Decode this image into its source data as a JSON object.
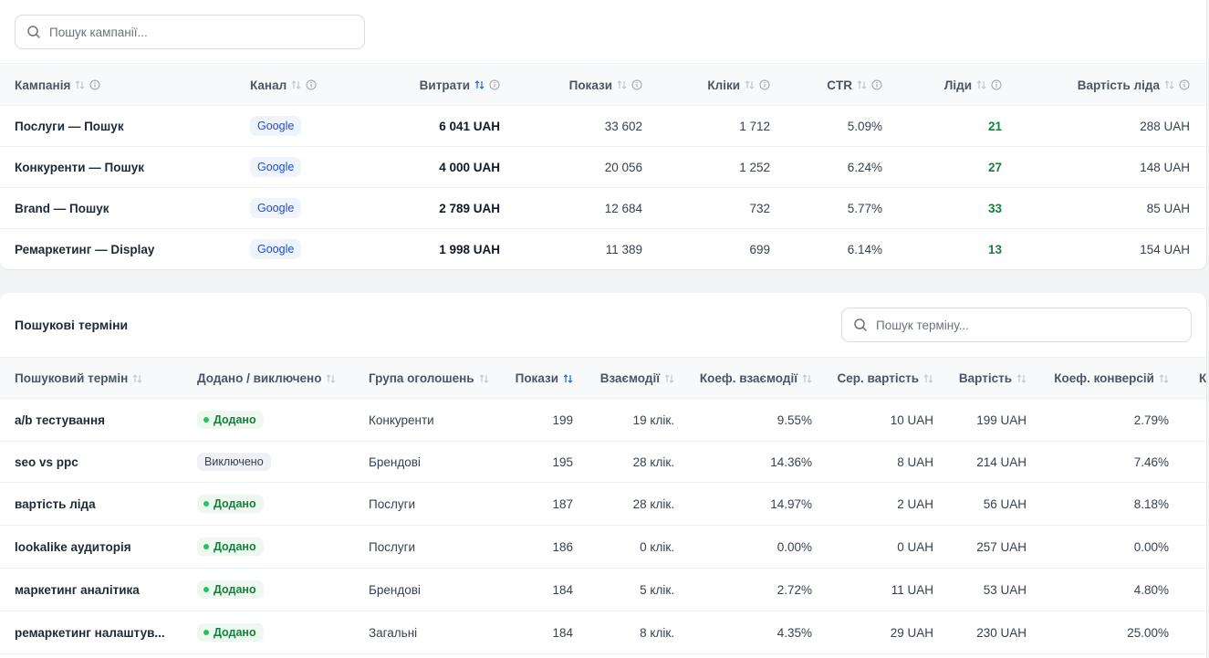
{
  "campaign_search": {
    "placeholder": "Пошук кампанії..."
  },
  "campaign_table": {
    "headers": [
      "Кампанія",
      "Канал",
      "Витрати",
      "Покази",
      "Кліки",
      "CTR",
      "Ліди",
      "Вартість ліда"
    ],
    "rows": [
      {
        "campaign": "Послуги — Пошук",
        "channel": "Google",
        "spend": "6 041 UAH",
        "impressions": "33 602",
        "clicks": "1 712",
        "ctr": "5.09%",
        "leads": "21",
        "cpl": "288 UAH"
      },
      {
        "campaign": "Конкуренти — Пошук",
        "channel": "Google",
        "spend": "4 000 UAH",
        "impressions": "20 056",
        "clicks": "1 252",
        "ctr": "6.24%",
        "leads": "27",
        "cpl": "148 UAH"
      },
      {
        "campaign": "Brand — Пошук",
        "channel": "Google",
        "spend": "2 789 UAH",
        "impressions": "12 684",
        "clicks": "732",
        "ctr": "5.77%",
        "leads": "33",
        "cpl": "85 UAH"
      },
      {
        "campaign": "Ремаркетинг — Display",
        "channel": "Google",
        "spend": "1 998 UAH",
        "impressions": "11 389",
        "clicks": "699",
        "ctr": "6.14%",
        "leads": "13",
        "cpl": "154 UAH"
      }
    ]
  },
  "terms_section": {
    "title": "Пошукові терміни",
    "search_placeholder": "Пошук терміну...",
    "headers": [
      "Пошуковий термін",
      "Додано / виключено",
      "Група оголошень",
      "Покази",
      "Взаємодії",
      "Коеф. взаємодії",
      "Сер. вартість",
      "Вартість",
      "Коеф. конверсій",
      "К"
    ],
    "rows": [
      {
        "term": "a/b тестування",
        "status": "Додано",
        "status_type": "added",
        "group": "Конкуренти",
        "impressions": "199",
        "interactions": "19 клік.",
        "rate": "9.55%",
        "avg_cost": "10 UAH",
        "cost": "199 UAH",
        "conv_rate": "2.79%"
      },
      {
        "term": "seo vs ppc",
        "status": "Виключено",
        "status_type": "excluded",
        "group": "Брендові",
        "impressions": "195",
        "interactions": "28 клік.",
        "rate": "14.36%",
        "avg_cost": "8 UAH",
        "cost": "214 UAH",
        "conv_rate": "7.46%"
      },
      {
        "term": "вартість ліда",
        "status": "Додано",
        "status_type": "added",
        "group": "Послуги",
        "impressions": "187",
        "interactions": "28 клік.",
        "rate": "14.97%",
        "avg_cost": "2 UAH",
        "cost": "56 UAH",
        "conv_rate": "8.18%"
      },
      {
        "term": "lookalike аудиторія",
        "status": "Додано",
        "status_type": "added",
        "group": "Послуги",
        "impressions": "186",
        "interactions": "0 клік.",
        "rate": "0.00%",
        "avg_cost": "0 UAH",
        "cost": "257 UAH",
        "conv_rate": "0.00%"
      },
      {
        "term": "маркетинг аналітика",
        "status": "Додано",
        "status_type": "added",
        "group": "Брендові",
        "impressions": "184",
        "interactions": "5 клік.",
        "rate": "2.72%",
        "avg_cost": "11 UAH",
        "cost": "53 UAH",
        "conv_rate": "4.80%"
      },
      {
        "term": "ремаркетинг налаштув...",
        "status": "Додано",
        "status_type": "added",
        "group": "Загальні",
        "impressions": "184",
        "interactions": "8 клік.",
        "rate": "4.35%",
        "avg_cost": "29 UAH",
        "cost": "230 UAH",
        "conv_rate": "25.00%"
      }
    ]
  },
  "icons": {
    "search": "search-icon",
    "sort": "sort-icon",
    "info": "info-icon"
  },
  "colors": {
    "accent": "#2563eb",
    "leads_green": "#15803d",
    "added_dot": "#22c55e",
    "google_badge_text": "#1d4ed8"
  }
}
